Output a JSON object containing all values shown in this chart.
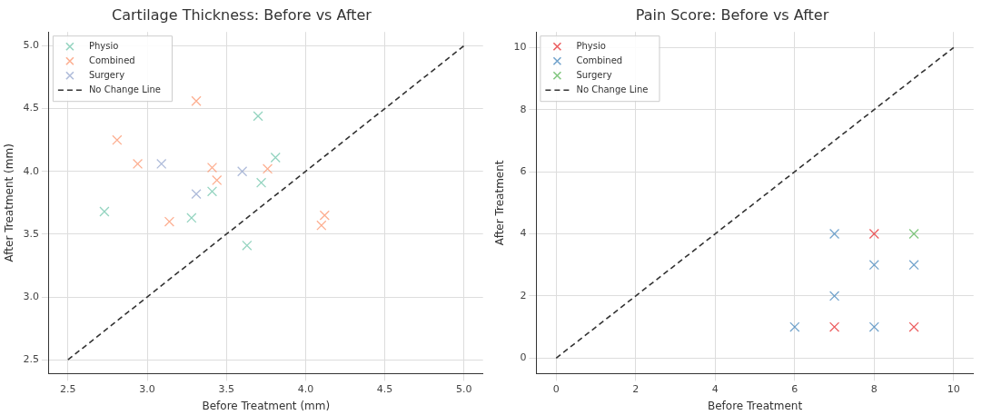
{
  "chart_data": [
    {
      "type": "scatter",
      "title": "Cartilage Thickness: Before vs After",
      "xlabel": "Before Treatment (mm)",
      "ylabel": "After Treatment (mm)",
      "xlim": [
        2.38,
        5.12
      ],
      "ylim": [
        2.39,
        5.11
      ],
      "xticks": [
        {
          "value": 2.5,
          "label": "2.5"
        },
        {
          "value": 3,
          "label": "3.0"
        },
        {
          "value": 3.5,
          "label": "3.5"
        },
        {
          "value": 4,
          "label": "4.0"
        },
        {
          "value": 4.5,
          "label": "4.5"
        },
        {
          "value": 5,
          "label": "5.0"
        }
      ],
      "yticks": [
        {
          "value": 2.5,
          "label": "2.5"
        },
        {
          "value": 3,
          "label": "3.0"
        },
        {
          "value": 3.5,
          "label": "3.5"
        },
        {
          "value": 4,
          "label": "4.0"
        },
        {
          "value": 4.5,
          "label": "4.5"
        },
        {
          "value": 5,
          "label": "5.0"
        }
      ],
      "grid": true,
      "legend": "top left",
      "marker": "cross",
      "series": [
        {
          "name": "Physio",
          "color": "#66c2a5",
          "x": [
            2.73,
            3.28,
            3.41,
            3.63,
            3.7,
            3.72,
            3.81
          ],
          "values": [
            3.68,
            3.63,
            3.84,
            3.41,
            4.44,
            3.91,
            4.11
          ]
        },
        {
          "name": "Combined",
          "color": "#fc8d62",
          "x": [
            2.81,
            2.94,
            3.14,
            3.31,
            3.41,
            3.44,
            3.76,
            4.1,
            4.12
          ],
          "values": [
            4.25,
            4.06,
            3.6,
            4.56,
            4.03,
            3.93,
            4.02,
            3.57,
            3.65
          ]
        },
        {
          "name": "Surgery",
          "color": "#8da0cb",
          "x": [
            3.09,
            3.31,
            3.6
          ],
          "values": [
            4.06,
            3.82,
            4.0
          ]
        },
        {
          "name": "No Change Line",
          "type": "line",
          "color": "#333333",
          "line_style": "dashed",
          "marker": "none",
          "x": [
            2.5,
            5
          ],
          "values": [
            2.5,
            5
          ]
        }
      ]
    },
    {
      "type": "scatter",
      "title": "Pain Score: Before vs After",
      "xlabel": "Before Treatment",
      "ylabel": "After Treatment",
      "xlim": [
        -0.5,
        10.5
      ],
      "ylim": [
        -0.5,
        10.5
      ],
      "xticks": [
        0,
        2,
        4,
        6,
        8,
        10
      ],
      "yticks": [
        0,
        2,
        4,
        6,
        8,
        10
      ],
      "grid": true,
      "legend": "top left",
      "marker": "cross",
      "series": [
        {
          "name": "Physio",
          "color": "#e41a1c",
          "x": [
            7,
            8,
            9
          ],
          "values": [
            1,
            4,
            1
          ]
        },
        {
          "name": "Combined",
          "color": "#377eb8",
          "x": [
            6,
            7,
            7,
            8,
            9,
            8
          ],
          "values": [
            1,
            4,
            2,
            3,
            3,
            1
          ]
        },
        {
          "name": "Surgery",
          "color": "#4daf4a",
          "x": [
            9
          ],
          "values": [
            4
          ]
        },
        {
          "name": "No Change Line",
          "type": "line",
          "color": "#333333",
          "line_style": "dashed",
          "marker": "none",
          "x": [
            0,
            10
          ],
          "values": [
            0,
            10
          ]
        }
      ]
    }
  ]
}
